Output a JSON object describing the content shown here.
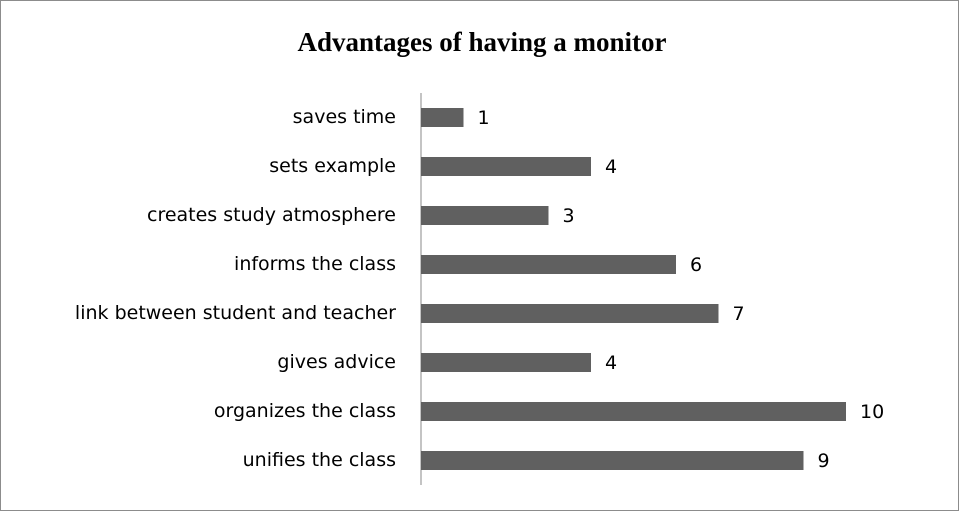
{
  "chart_data": {
    "type": "bar",
    "orientation": "horizontal",
    "title": "Advantages of having a monitor",
    "categories": [
      "saves time",
      "sets example",
      "creates study atmosphere",
      "informs the class",
      "link between student and teacher",
      "gives advice",
      "organizes the class",
      "unifies the class"
    ],
    "values": [
      1,
      4,
      3,
      6,
      7,
      4,
      10,
      9
    ],
    "color": "#606060"
  }
}
